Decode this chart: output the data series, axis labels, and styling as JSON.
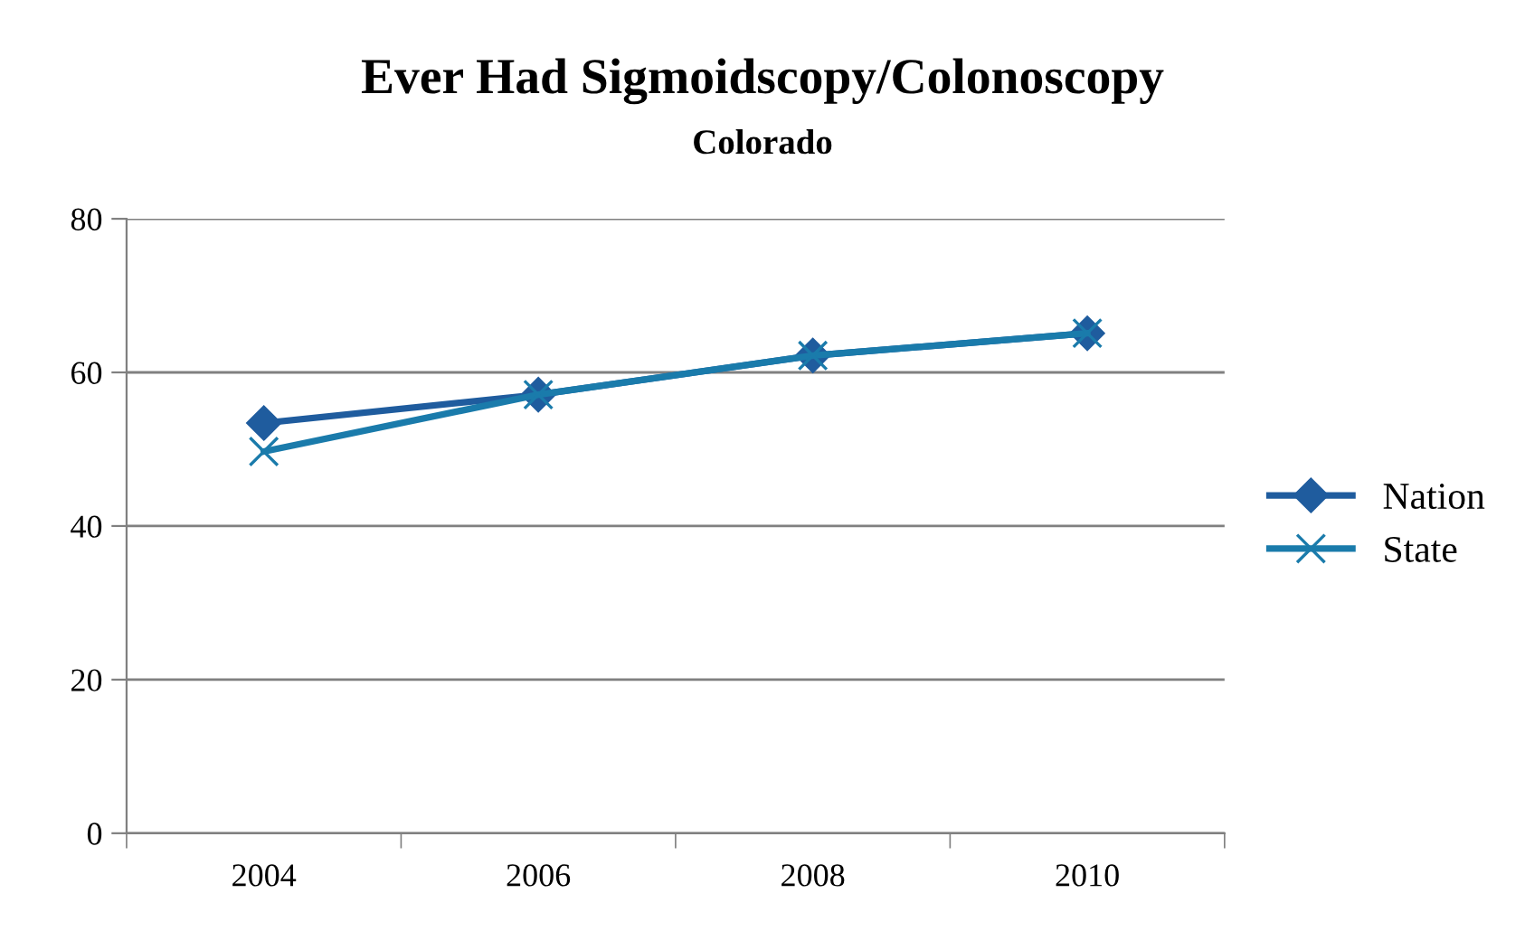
{
  "chart_data": {
    "type": "line",
    "title": "Ever Had Sigmoidscopy/Colonoscopy",
    "subtitle": "Colorado",
    "categories": [
      "2004",
      "2006",
      "2008",
      "2010"
    ],
    "series": [
      {
        "name": "Nation",
        "color": "#1f5c9e",
        "marker": "diamond",
        "values": [
          53.4,
          57.1,
          62.2,
          65.1
        ]
      },
      {
        "name": "State",
        "color": "#1a7bab",
        "marker": "cross",
        "values": [
          49.7,
          57.1,
          62.2,
          65.1
        ]
      }
    ],
    "ylim": [
      0,
      80
    ],
    "yticks": [
      0,
      20,
      40,
      60,
      80
    ],
    "grid": "y",
    "legend": "right",
    "line_style": "solid"
  }
}
